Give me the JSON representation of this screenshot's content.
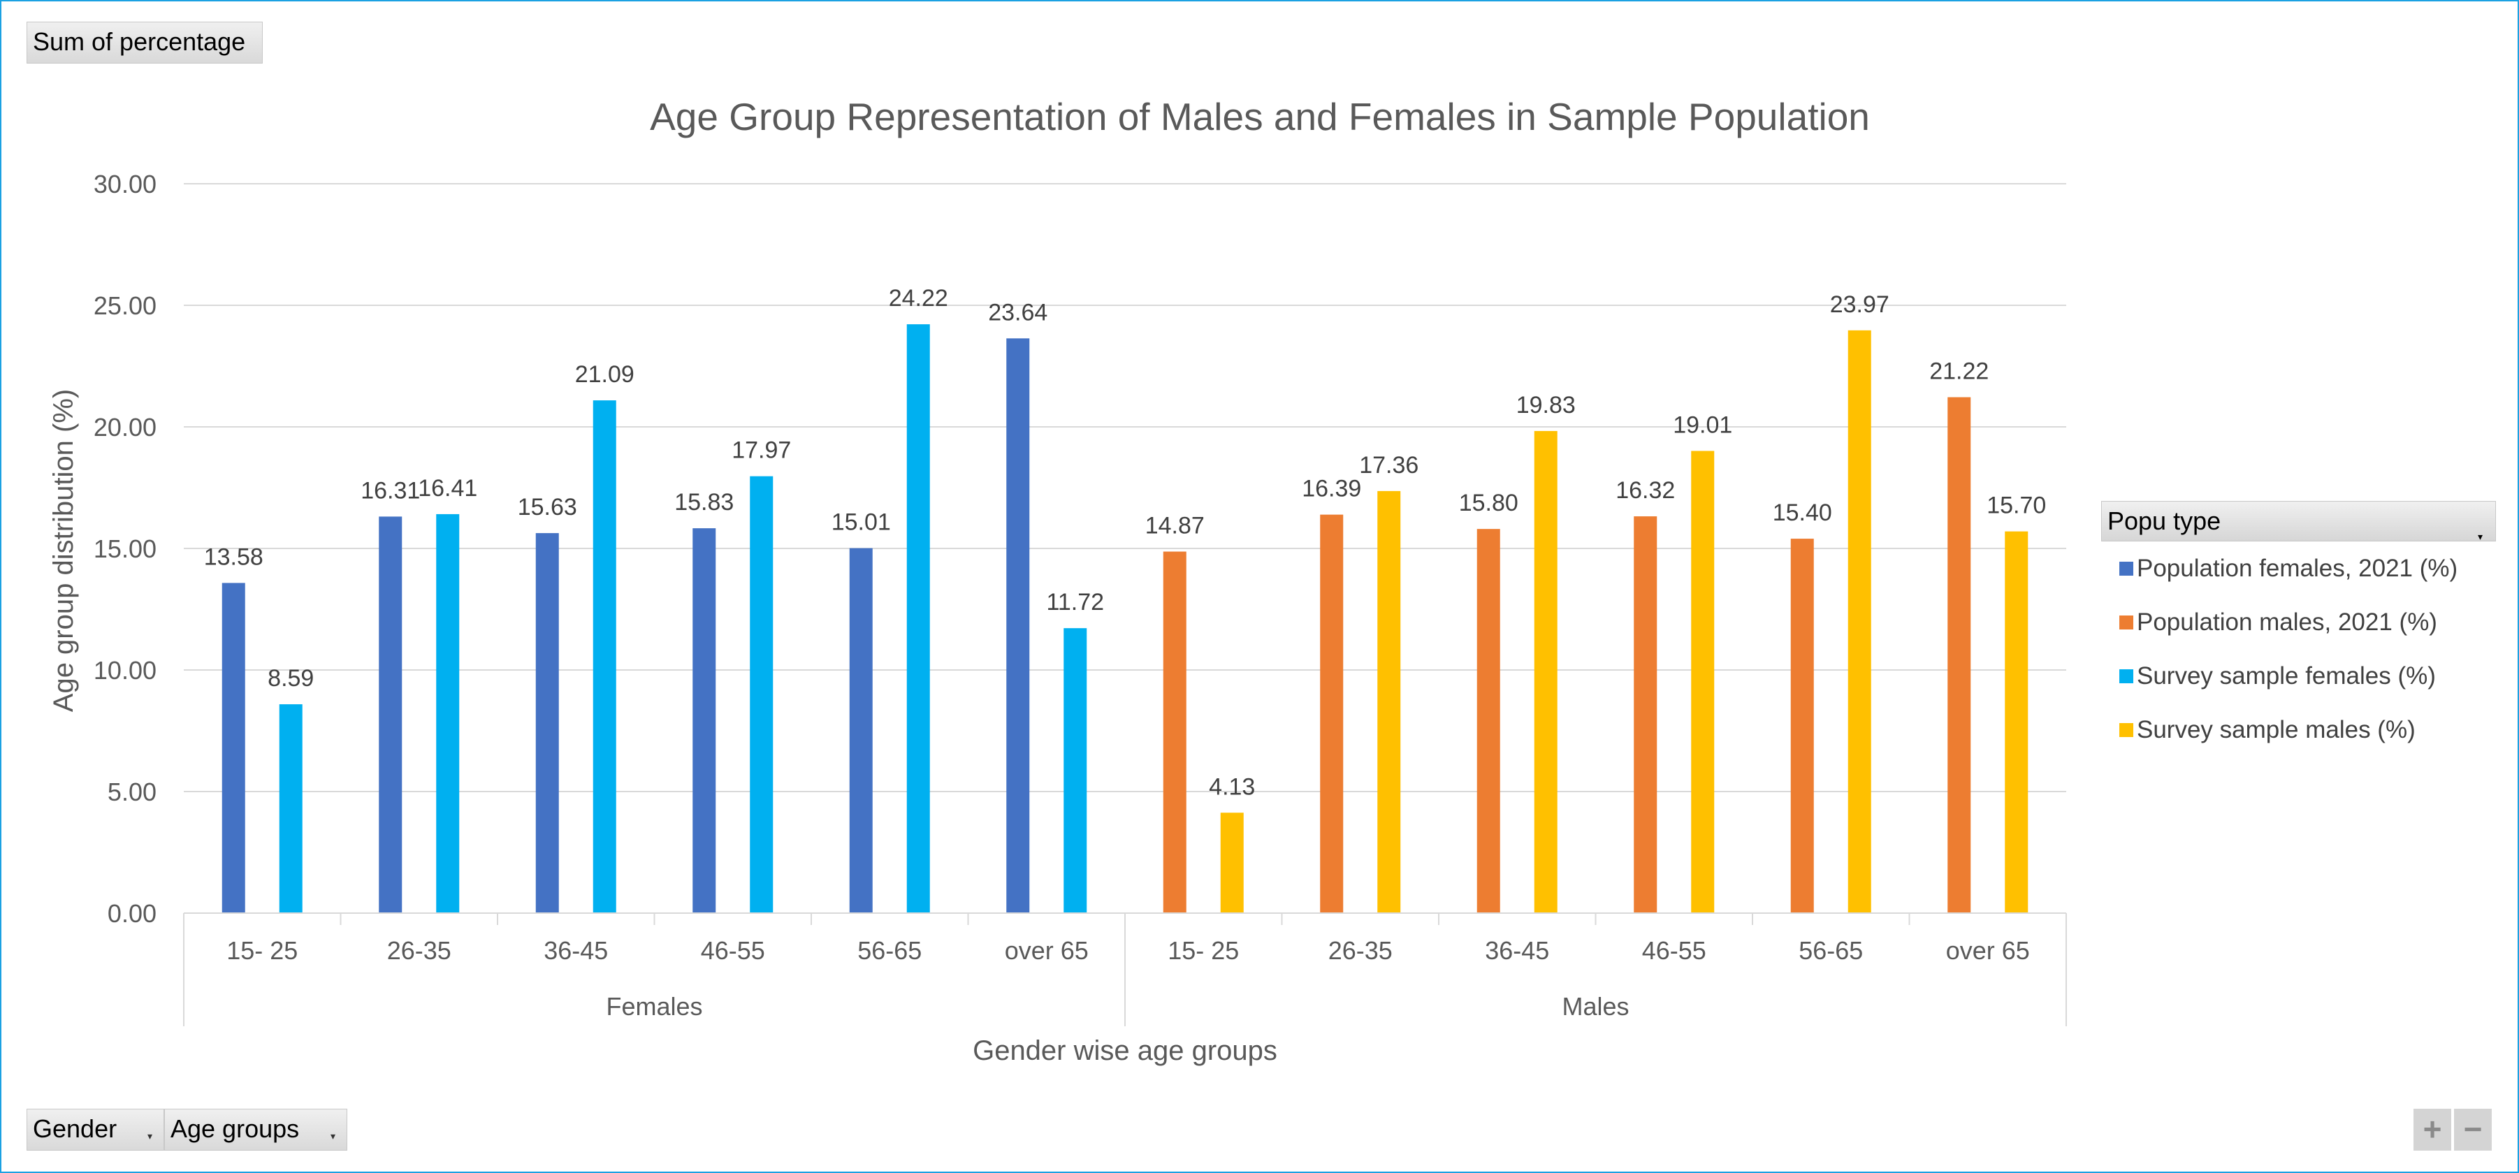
{
  "field_buttons": {
    "value_field": "Sum of percentage",
    "gender": "Gender",
    "age_groups": "Age groups"
  },
  "legend": {
    "title": "Popu type",
    "items": [
      {
        "label": "Population females, 2021 (%)",
        "color": "#4472c4"
      },
      {
        "label": "Population males, 2021 (%)",
        "color": "#ed7d31"
      },
      {
        "label": "Survey sample females (%)",
        "color": "#00b0f0"
      },
      {
        "label": "Survey sample males (%)",
        "color": "#ffc000"
      }
    ]
  },
  "zoom": {
    "plus": "+",
    "minus": "−"
  },
  "chart_data": {
    "type": "bar",
    "title": "Age Group Representation of Males and Females in Sample Population",
    "xlabel": "Gender wise age groups",
    "ylabel": "Age group distribution (%)",
    "ylim": [
      0,
      30
    ],
    "yticks": [
      "0.00",
      "5.00",
      "10.00",
      "15.00",
      "20.00",
      "25.00",
      "30.00"
    ],
    "grid": true,
    "legend_position": "right",
    "groups": [
      {
        "name": "Females",
        "categories": [
          "15- 25",
          "26-35",
          "36-45",
          "46-55",
          "56-65",
          "over 65"
        ],
        "series": [
          {
            "name": "Population females, 2021 (%)",
            "color": "#4472c4",
            "values": [
              13.58,
              16.31,
              15.63,
              15.83,
              15.01,
              23.64
            ],
            "labels": [
              "13.58",
              "16.31",
              "15.63",
              "15.83",
              "15.01",
              "23.64"
            ]
          },
          {
            "name": "Survey sample females (%)",
            "color": "#00b0f0",
            "values": [
              8.59,
              16.41,
              21.09,
              17.97,
              24.22,
              11.72
            ],
            "labels": [
              "8.59",
              "16.41",
              "21.09",
              "17.97",
              "24.22",
              "11.72"
            ]
          }
        ]
      },
      {
        "name": "Males",
        "categories": [
          "15- 25",
          "26-35",
          "36-45",
          "46-55",
          "56-65",
          "over 65"
        ],
        "series": [
          {
            "name": "Population males, 2021 (%)",
            "color": "#ed7d31",
            "values": [
              14.87,
              16.39,
              15.8,
              16.32,
              15.4,
              21.22
            ],
            "labels": [
              "14.87",
              "16.39",
              "15.80",
              "16.32",
              "15.40",
              "21.22"
            ]
          },
          {
            "name": "Survey sample males (%)",
            "color": "#ffc000",
            "values": [
              4.13,
              17.36,
              19.83,
              19.01,
              23.97,
              15.7
            ],
            "labels": [
              "4.13",
              "17.36",
              "19.83",
              "19.01",
              "23.97",
              "15.70"
            ]
          }
        ]
      }
    ]
  }
}
